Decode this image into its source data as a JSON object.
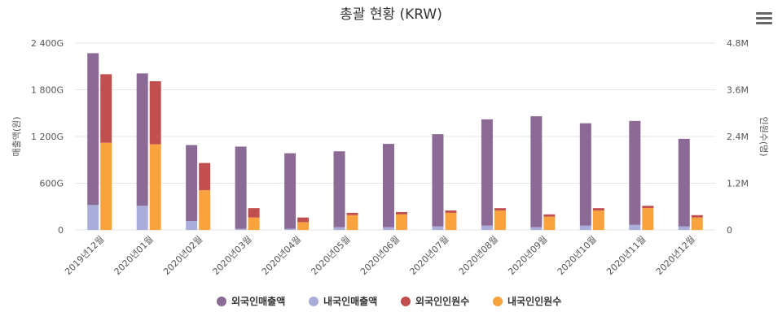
{
  "chart_data": {
    "type": "bar",
    "title": "총괄 현황 (KRW)",
    "categories": [
      "2019년12월",
      "2020년01월",
      "2020년02월",
      "2020년03월",
      "2020년04월",
      "2020년05월",
      "2020년06월",
      "2020년07월",
      "2020년08월",
      "2020년09월",
      "2020년10월",
      "2020년11월",
      "2020년12월"
    ],
    "y_left": {
      "label": "매출액(원)",
      "ticks": [
        "0",
        "600G",
        "1 200G",
        "1 800G",
        "2 400G"
      ],
      "range": [
        0,
        2400
      ]
    },
    "y_right": {
      "label": "인원수(명)",
      "ticks": [
        "0",
        "1.2M",
        "2.4M",
        "3.6M",
        "4.8M"
      ],
      "range": [
        0,
        4.8
      ]
    },
    "stacks": [
      {
        "axis": "left",
        "series": [
          {
            "name": "내국인매출액",
            "color": "#a9add9",
            "values": [
              320,
              310,
              115,
              15,
              15,
              35,
              35,
              45,
              55,
              35,
              55,
              65,
              45
            ]
          },
          {
            "name": "외국인매출액",
            "color": "#8c6a96",
            "values": [
              1950,
              1700,
              975,
              1055,
              970,
              975,
              1070,
              1185,
              1365,
              1425,
              1315,
              1335,
              1125
            ]
          }
        ]
      },
      {
        "axis": "right",
        "series": [
          {
            "name": "내국인인원수",
            "color": "#f9a33f",
            "values": [
              2.24,
              2.2,
              1.02,
              0.32,
              0.2,
              0.38,
              0.4,
              0.44,
              0.5,
              0.34,
              0.5,
              0.56,
              0.32
            ]
          },
          {
            "name": "외국인인원수",
            "color": "#c24f4f",
            "values": [
              1.76,
              1.62,
              0.7,
              0.24,
              0.12,
              0.06,
              0.06,
              0.06,
              0.06,
              0.06,
              0.06,
              0.06,
              0.06
            ]
          }
        ]
      }
    ],
    "legend": {
      "position": "bottom-center",
      "items": [
        {
          "name": "외국인매출액",
          "color": "#8c6a96"
        },
        {
          "name": "내국인매출액",
          "color": "#a9add9"
        },
        {
          "name": "외국인인원수",
          "color": "#c24f4f"
        },
        {
          "name": "내국인인원수",
          "color": "#f9a33f"
        }
      ]
    },
    "grid": true
  },
  "menu_icon": "hamburger-menu-icon"
}
